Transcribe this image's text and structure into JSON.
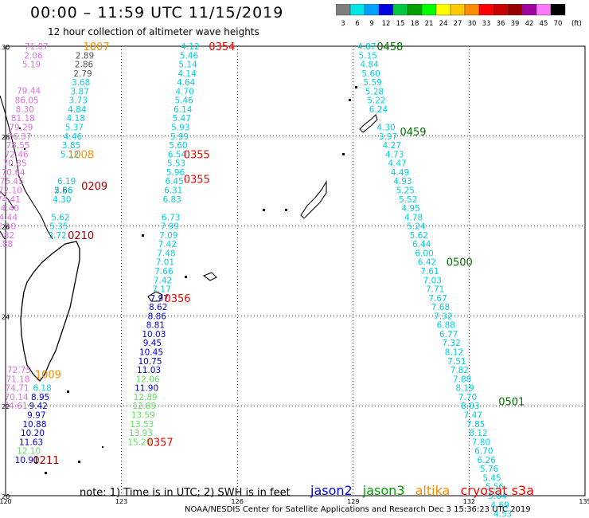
{
  "header": {
    "title": "00:00 – 11:59 UTC 11/15/2019",
    "subtitle": "12 hour collection of altimeter wave heights"
  },
  "colorbar": {
    "unit": "(ft)",
    "bins": [
      {
        "label": "3",
        "color": "#7f7f7f"
      },
      {
        "label": "6",
        "color": "#00e5e5"
      },
      {
        "label": "9",
        "color": "#00a0ff"
      },
      {
        "label": "12",
        "color": "#0000e0"
      },
      {
        "label": "15",
        "color": "#00c840"
      },
      {
        "label": "18",
        "color": "#00a000"
      },
      {
        "label": "21",
        "color": "#00ff00"
      },
      {
        "label": "24",
        "color": "#ffff00"
      },
      {
        "label": "27",
        "color": "#ffc800"
      },
      {
        "label": "30",
        "color": "#ff8c00"
      },
      {
        "label": "33",
        "color": "#ff0000"
      },
      {
        "label": "36",
        "color": "#c80000"
      },
      {
        "label": "39",
        "color": "#960000"
      },
      {
        "label": "42",
        "color": "#a000a0"
      },
      {
        "label": "45",
        "color": "#ff78ff"
      },
      {
        "label": "70",
        "color": "#000000"
      }
    ]
  },
  "axes": {
    "lat_ticks": [
      30,
      28,
      26,
      24,
      22,
      20
    ],
    "lon_ticks": [
      120,
      123,
      126,
      129,
      132,
      135
    ],
    "lat_range": [
      20,
      30
    ],
    "lon_range": [
      120,
      135
    ]
  },
  "colors": {
    "pink": "#e070e0",
    "cyan": "#00d0e0",
    "gray": "#555555",
    "blue": "#0000d0",
    "green": "#60e060",
    "darkred": "#a00000",
    "red": "#ff0000",
    "orange": "#ff8c00",
    "darkgreen": "#007000"
  },
  "tracks": [
    {
      "name": "track-pink",
      "color": "pink",
      "points": [
        {
          "label": "71.07",
          "lon": 120.8,
          "lat": 30.0
        },
        {
          "label": "2.06",
          "lon": 120.72,
          "lat": 29.8
        },
        {
          "label": "5.19",
          "lon": 120.67,
          "lat": 29.6
        },
        {
          "label": "79.44",
          "lon": 120.6,
          "lat": 29.02
        },
        {
          "label": "86.05",
          "lon": 120.55,
          "lat": 28.8
        },
        {
          "label": "8.30",
          "lon": 120.5,
          "lat": 28.6
        },
        {
          "label": "81.18",
          "lon": 120.45,
          "lat": 28.4
        },
        {
          "label": "79.29",
          "lon": 120.4,
          "lat": 28.2
        },
        {
          "label": "76.37",
          "lon": 120.36,
          "lat": 28.0
        },
        {
          "label": "78.55",
          "lon": 120.32,
          "lat": 27.8
        },
        {
          "label": "72.46",
          "lon": 120.28,
          "lat": 27.6
        },
        {
          "label": "70.85",
          "lon": 120.24,
          "lat": 27.4
        },
        {
          "label": "70.64",
          "lon": 120.2,
          "lat": 27.2
        },
        {
          "label": "75.45",
          "lon": 120.16,
          "lat": 27.0
        },
        {
          "label": "72.10",
          "lon": 120.12,
          "lat": 26.8
        },
        {
          "label": "74.41",
          "lon": 120.08,
          "lat": 26.6
        },
        {
          "label": "74.40",
          "lon": 120.04,
          "lat": 26.4
        },
        {
          "label": "74.44",
          "lon": 120.0,
          "lat": 26.2
        },
        {
          "label": "72.10",
          "lon": 119.96,
          "lat": 26.0
        },
        {
          "label": "74.82",
          "lon": 119.92,
          "lat": 25.8
        },
        {
          "label": "71.88",
          "lon": 119.88,
          "lat": 25.6
        }
      ]
    },
    {
      "name": "track-gray",
      "color": "gray",
      "points": [
        {
          "label": "2.89",
          "lon": 122.05,
          "lat": 29.8
        },
        {
          "label": "2.86",
          "lon": 122.03,
          "lat": 29.6
        },
        {
          "label": "2.79",
          "lon": 122.0,
          "lat": 29.4
        },
        {
          "label": "2.66",
          "lon": 121.5,
          "lat": 26.8
        }
      ]
    },
    {
      "name": "track-cyan-west",
      "color": "cyan",
      "points": [
        {
          "label": "3.68",
          "lon": 121.95,
          "lat": 29.2
        },
        {
          "label": "3.87",
          "lon": 121.92,
          "lat": 29.0
        },
        {
          "label": "3.73",
          "lon": 121.88,
          "lat": 28.8
        },
        {
          "label": "4.84",
          "lon": 121.85,
          "lat": 28.6
        },
        {
          "label": "4.18",
          "lon": 121.82,
          "lat": 28.4
        },
        {
          "label": "5.37",
          "lon": 121.78,
          "lat": 28.2
        },
        {
          "label": "4.46",
          "lon": 121.74,
          "lat": 28.0
        },
        {
          "label": "3.85",
          "lon": 121.7,
          "lat": 27.8
        },
        {
          "label": "5.12",
          "lon": 121.66,
          "lat": 27.6
        },
        {
          "label": "6.19",
          "lon": 121.58,
          "lat": 27.0
        },
        {
          "label": "5.26",
          "lon": 121.5,
          "lat": 26.8
        },
        {
          "label": "4.30",
          "lon": 121.46,
          "lat": 26.6
        },
        {
          "label": "5.62",
          "lon": 121.42,
          "lat": 26.2
        },
        {
          "label": "5.35",
          "lon": 121.38,
          "lat": 26.0
        },
        {
          "label": "3.72",
          "lon": 121.34,
          "lat": 25.8
        }
      ]
    },
    {
      "name": "track-cyan-mid",
      "color": "cyan",
      "points": [
        {
          "label": "4.12",
          "lon": 124.78,
          "lat": 30.0
        },
        {
          "label": "5.46",
          "lon": 124.75,
          "lat": 29.8
        },
        {
          "label": "5.14",
          "lon": 124.72,
          "lat": 29.6
        },
        {
          "label": "4.14",
          "lon": 124.7,
          "lat": 29.4
        },
        {
          "label": "4.64",
          "lon": 124.67,
          "lat": 29.2
        },
        {
          "label": "4.70",
          "lon": 124.64,
          "lat": 29.0
        },
        {
          "label": "5.46",
          "lon": 124.62,
          "lat": 28.8
        },
        {
          "label": "6.14",
          "lon": 124.59,
          "lat": 28.6
        },
        {
          "label": "5.47",
          "lon": 124.56,
          "lat": 28.4
        },
        {
          "label": "5.93",
          "lon": 124.53,
          "lat": 28.2
        },
        {
          "label": "5.99",
          "lon": 124.5,
          "lat": 28.0
        },
        {
          "label": "5.60",
          "lon": 124.47,
          "lat": 27.8
        },
        {
          "label": "6.54",
          "lon": 124.44,
          "lat": 27.6
        },
        {
          "label": "5.53",
          "lon": 124.42,
          "lat": 27.4
        },
        {
          "label": "5.96",
          "lon": 124.4,
          "lat": 27.2
        },
        {
          "label": "6.45",
          "lon": 124.37,
          "lat": 27.0
        },
        {
          "label": "6.31",
          "lon": 124.34,
          "lat": 26.8
        },
        {
          "label": "6.83",
          "lon": 124.31,
          "lat": 26.6
        },
        {
          "label": "6.73",
          "lon": 124.28,
          "lat": 26.2
        },
        {
          "label": "7.99",
          "lon": 124.25,
          "lat": 26.0
        },
        {
          "label": "7.09",
          "lon": 124.22,
          "lat": 25.8
        },
        {
          "label": "7.42",
          "lon": 124.19,
          "lat": 25.6
        },
        {
          "label": "7.48",
          "lon": 124.16,
          "lat": 25.4
        },
        {
          "label": "7.01",
          "lon": 124.13,
          "lat": 25.2
        },
        {
          "label": "7.66",
          "lon": 124.1,
          "lat": 25.0
        },
        {
          "label": "7.42",
          "lon": 124.07,
          "lat": 24.8
        },
        {
          "label": "7.17",
          "lon": 124.04,
          "lat": 24.6
        }
      ]
    },
    {
      "name": "track-blue-mid",
      "color": "blue",
      "points": [
        {
          "label": "7.97",
          "lon": 123.98,
          "lat": 24.4
        },
        {
          "label": "8.62",
          "lon": 123.95,
          "lat": 24.2
        },
        {
          "label": "8.86",
          "lon": 123.92,
          "lat": 24.0
        },
        {
          "label": "8.81",
          "lon": 123.88,
          "lat": 23.8
        },
        {
          "label": "10.03",
          "lon": 123.84,
          "lat": 23.6
        },
        {
          "label": "9.45",
          "lon": 123.8,
          "lat": 23.4
        },
        {
          "label": "10.45",
          "lon": 123.77,
          "lat": 23.2
        },
        {
          "label": "10.75",
          "lon": 123.74,
          "lat": 23.0
        },
        {
          "label": "11.03",
          "lon": 123.71,
          "lat": 22.8
        },
        {
          "label": "11.90",
          "lon": 123.65,
          "lat": 22.4
        }
      ]
    },
    {
      "name": "track-green-mid",
      "color": "green",
      "points": [
        {
          "label": "12.06",
          "lon": 123.68,
          "lat": 22.6
        },
        {
          "label": "12.89",
          "lon": 123.62,
          "lat": 22.2
        },
        {
          "label": "12.89",
          "lon": 123.59,
          "lat": 22.0
        },
        {
          "label": "13.59",
          "lon": 123.56,
          "lat": 21.8
        },
        {
          "label": "13.53",
          "lon": 123.53,
          "lat": 21.6
        },
        {
          "label": "13.93",
          "lon": 123.5,
          "lat": 21.4
        },
        {
          "label": "15.20",
          "lon": 123.47,
          "lat": 21.2
        }
      ]
    },
    {
      "name": "track-southwest",
      "color": "blue",
      "points": [
        {
          "label": "8.95",
          "lon": 120.9,
          "lat": 22.2
        },
        {
          "label": "9.42",
          "lon": 120.85,
          "lat": 22.0
        },
        {
          "label": "9.97",
          "lon": 120.8,
          "lat": 21.8
        },
        {
          "label": "10.88",
          "lon": 120.75,
          "lat": 21.6
        },
        {
          "label": "10.20",
          "lon": 120.7,
          "lat": 21.4
        },
        {
          "label": "11.63",
          "lon": 120.66,
          "lat": 21.2
        },
        {
          "label": "10.91",
          "lon": 120.55,
          "lat": 20.8
        }
      ]
    },
    {
      "name": "track-southwest-other",
      "color": "pink",
      "points": [
        {
          "label": "72.75",
          "lon": 120.35,
          "lat": 22.8
        },
        {
          "label": "71.18",
          "lon": 120.32,
          "lat": 22.6
        },
        {
          "label": "74.71",
          "lon": 120.3,
          "lat": 22.4
        },
        {
          "label": "70.14",
          "lon": 120.28,
          "lat": 22.2
        },
        {
          "label": "74.61",
          "lon": 120.26,
          "lat": 22.0
        }
      ]
    },
    {
      "name": "track-sw-misc",
      "color": "cyan",
      "points": [
        {
          "label": "6.18",
          "lon": 120.95,
          "lat": 22.4
        }
      ]
    },
    {
      "name": "track-sw-green",
      "color": "green",
      "points": [
        {
          "label": "12.10",
          "lon": 120.6,
          "lat": 21.0
        }
      ]
    },
    {
      "name": "track-cyan-east",
      "color": "cyan",
      "points": [
        {
          "label": "4.87",
          "lon": 129.35,
          "lat": 30.0
        },
        {
          "label": "5.15",
          "lon": 129.38,
          "lat": 29.8
        },
        {
          "label": "4.84",
          "lon": 129.42,
          "lat": 29.6
        },
        {
          "label": "5.60",
          "lon": 129.46,
          "lat": 29.4
        },
        {
          "label": "5.59",
          "lon": 129.5,
          "lat": 29.2
        },
        {
          "label": "5.28",
          "lon": 129.55,
          "lat": 29.0
        },
        {
          "label": "5.22",
          "lon": 129.6,
          "lat": 28.8
        },
        {
          "label": "6.24",
          "lon": 129.65,
          "lat": 28.6
        },
        {
          "label": "4.30",
          "lon": 129.85,
          "lat": 28.2
        },
        {
          "label": "3.97",
          "lon": 129.9,
          "lat": 28.0
        },
        {
          "label": "4.27",
          "lon": 130.0,
          "lat": 27.8
        },
        {
          "label": "4.73",
          "lon": 130.07,
          "lat": 27.6
        },
        {
          "label": "4.47",
          "lon": 130.14,
          "lat": 27.4
        },
        {
          "label": "4.49",
          "lon": 130.21,
          "lat": 27.2
        },
        {
          "label": "4.93",
          "lon": 130.28,
          "lat": 27.0
        },
        {
          "label": "5.25",
          "lon": 130.35,
          "lat": 26.8
        },
        {
          "label": "5.52",
          "lon": 130.42,
          "lat": 26.6
        },
        {
          "label": "4.95",
          "lon": 130.49,
          "lat": 26.4
        },
        {
          "label": "4.78",
          "lon": 130.56,
          "lat": 26.2
        },
        {
          "label": "5.24",
          "lon": 130.63,
          "lat": 26.0
        },
        {
          "label": "5.62",
          "lon": 130.7,
          "lat": 25.8
        },
        {
          "label": "6.44",
          "lon": 130.77,
          "lat": 25.6
        },
        {
          "label": "6.00",
          "lon": 130.84,
          "lat": 25.4
        },
        {
          "label": "6.42",
          "lon": 130.91,
          "lat": 25.2
        },
        {
          "label": "7.61",
          "lon": 130.98,
          "lat": 25.0
        },
        {
          "label": "7.03",
          "lon": 131.05,
          "lat": 24.8
        },
        {
          "label": "7.71",
          "lon": 131.12,
          "lat": 24.6
        },
        {
          "label": "7.67",
          "lon": 131.19,
          "lat": 24.4
        },
        {
          "label": "7.68",
          "lon": 131.26,
          "lat": 24.2
        },
        {
          "label": "7.32",
          "lon": 131.33,
          "lat": 24.0
        },
        {
          "label": "6.88",
          "lon": 131.4,
          "lat": 23.8
        },
        {
          "label": "6.77",
          "lon": 131.47,
          "lat": 23.6
        },
        {
          "label": "7.32",
          "lon": 131.54,
          "lat": 23.4
        },
        {
          "label": "8.12",
          "lon": 131.61,
          "lat": 23.2
        },
        {
          "label": "7.51",
          "lon": 131.68,
          "lat": 23.0
        },
        {
          "label": "7.82",
          "lon": 131.75,
          "lat": 22.8
        },
        {
          "label": "7.88",
          "lon": 131.82,
          "lat": 22.6
        },
        {
          "label": "8.19",
          "lon": 131.89,
          "lat": 22.4
        },
        {
          "label": "7.70",
          "lon": 131.96,
          "lat": 22.2
        },
        {
          "label": "8.03",
          "lon": 132.03,
          "lat": 22.0
        },
        {
          "label": "7.47",
          "lon": 132.1,
          "lat": 21.8
        },
        {
          "label": "7.85",
          "lon": 132.17,
          "lat": 21.6
        },
        {
          "label": "8.12",
          "lon": 132.24,
          "lat": 21.4
        },
        {
          "label": "7.80",
          "lon": 132.31,
          "lat": 21.2
        },
        {
          "label": "6.70",
          "lon": 132.38,
          "lat": 21.0
        },
        {
          "label": "6.26",
          "lon": 132.45,
          "lat": 20.8
        },
        {
          "label": "5.76",
          "lon": 132.52,
          "lat": 20.6
        },
        {
          "label": "5.45",
          "lon": 132.59,
          "lat": 20.4
        },
        {
          "label": "5.56",
          "lon": 132.66,
          "lat": 20.2
        },
        {
          "label": "5.64",
          "lon": 132.73,
          "lat": 20.0
        },
        {
          "label": "4.69",
          "lon": 132.8,
          "lat": 19.8
        },
        {
          "label": "4.53",
          "lon": 132.87,
          "lat": 19.6
        }
      ]
    }
  ],
  "time_labels": [
    {
      "label": "1007",
      "color": "orange",
      "lon": 122.35,
      "lat": 30.0
    },
    {
      "label": "0354",
      "color": "red",
      "lon": 125.6,
      "lat": 30.0
    },
    {
      "label": "1008",
      "color": "orange",
      "lon": 121.95,
      "lat": 27.6
    },
    {
      "label": "0209",
      "color": "darkred",
      "lon": 122.3,
      "lat": 26.9
    },
    {
      "label": "0355",
      "color": "red",
      "lon": 124.95,
      "lat": 27.6
    },
    {
      "label": "0355",
      "color": "red",
      "lon": 124.95,
      "lat": 27.05
    },
    {
      "label": "0210",
      "color": "darkred",
      "lon": 121.95,
      "lat": 25.8
    },
    {
      "label": "0356",
      "color": "red",
      "lon": 124.45,
      "lat": 24.4
    },
    {
      "label": "1009",
      "color": "orange",
      "lon": 121.1,
      "lat": 22.7
    },
    {
      "label": "0357",
      "color": "red",
      "lon": 124.0,
      "lat": 21.2
    },
    {
      "label": "0211",
      "color": "darkred",
      "lon": 121.05,
      "lat": 20.8
    },
    {
      "label": "0458",
      "color": "darkgreen",
      "lon": 129.95,
      "lat": 30.0
    },
    {
      "label": "0459",
      "color": "darkgreen",
      "lon": 130.55,
      "lat": 28.1
    },
    {
      "label": "0500",
      "color": "darkgreen",
      "lon": 131.75,
      "lat": 25.2
    },
    {
      "label": "0501",
      "color": "darkgreen",
      "lon": 133.1,
      "lat": 22.1
    }
  ],
  "footer": {
    "note": "note: 1) Time is in UTC; 2) SWH is in feet",
    "credit": "NOAA/NESDIS Center for Satellite Applications and Research   Dec  3 15:36:23 UTC 2019",
    "legend": [
      {
        "label": "jason2",
        "color": "#0000d0"
      },
      {
        "label": "jason3",
        "color": "#00a000"
      },
      {
        "label": "altika",
        "color": "#ff8c00"
      },
      {
        "label": "cryosat s3a",
        "color": "#ff0000"
      }
    ]
  }
}
